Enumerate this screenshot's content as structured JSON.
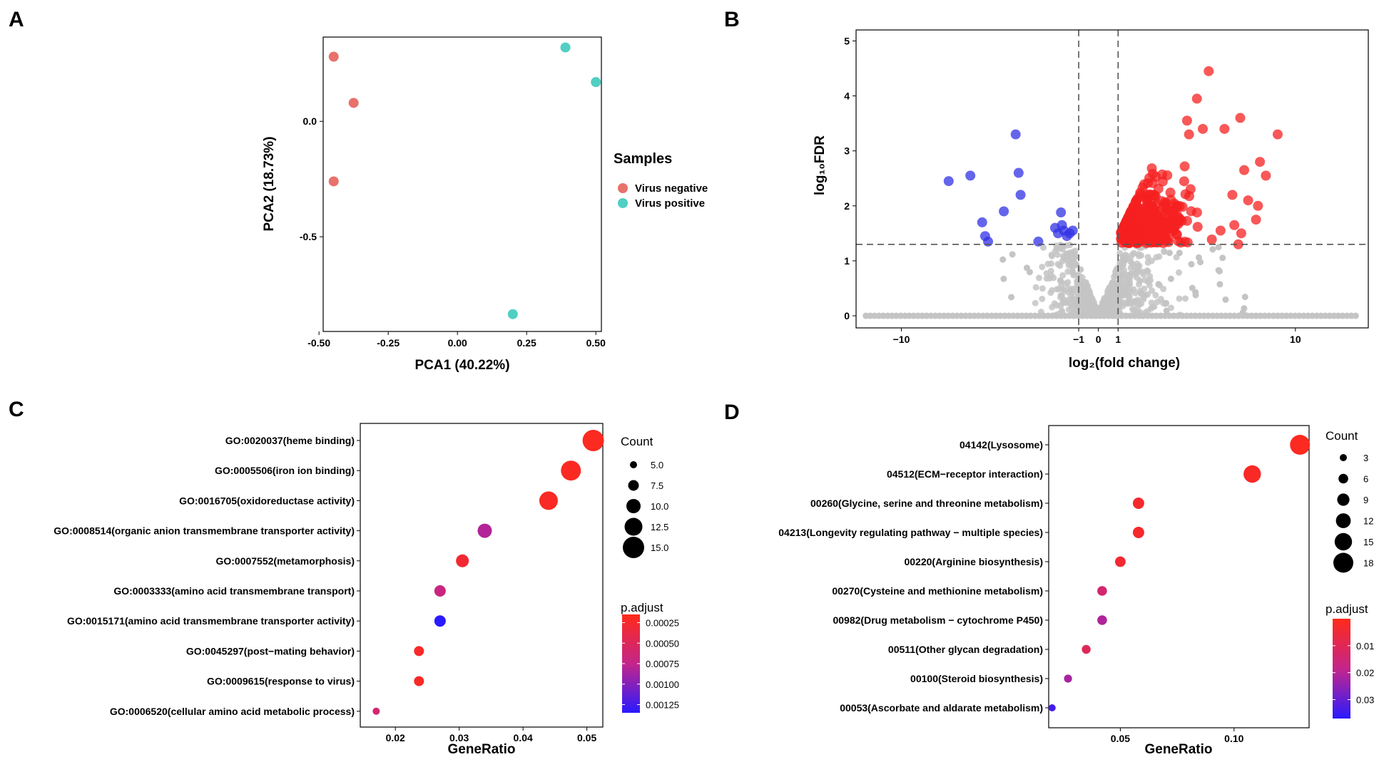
{
  "panels": {
    "a": "A",
    "b": "B",
    "c": "C",
    "d": "D"
  },
  "chart_data": [
    {
      "id": "pca",
      "type": "scatter",
      "title": "",
      "xlabel": "PCA1 (40.22%)",
      "ylabel": "PCA2 (18.73%)",
      "xlim": [
        -0.5,
        0.5
      ],
      "ylim": [
        -0.9,
        0.35
      ],
      "xticks": [
        -0.5,
        -0.25,
        0.0,
        0.25,
        0.5
      ],
      "xtick_labels": [
        "-0.50",
        "-0.25",
        "0.00",
        "0.25",
        "0.50"
      ],
      "yticks": [
        0.0,
        -0.5
      ],
      "ytick_labels": [
        "0.0",
        "-0.5"
      ],
      "legend": {
        "title": "Samples",
        "entries": [
          {
            "label": "Virus negative",
            "color": "#e8716c"
          },
          {
            "label": "Virus positive",
            "color": "#50cfc2"
          }
        ]
      },
      "series": [
        {
          "name": "Virus negative",
          "color": "#e8716c",
          "points": [
            [
              -0.447,
              0.28
            ],
            [
              -0.375,
              0.08
            ],
            [
              -0.447,
              -0.26
            ]
          ]
        },
        {
          "name": "Virus positive",
          "color": "#50cfc2",
          "points": [
            [
              0.39,
              0.32
            ],
            [
              0.5,
              0.17
            ],
            [
              0.2,
              -0.835
            ]
          ]
        }
      ]
    },
    {
      "id": "volcano",
      "type": "scatter",
      "title": "",
      "xlabel": "log₂(fold change)",
      "ylabel": "log₁₀FDR",
      "xlim": [
        -12.5,
        13.5
      ],
      "ylim": [
        -0.25,
        5.2
      ],
      "xticks": [
        -10,
        -1,
        0,
        1,
        10
      ],
      "xtick_labels": [
        "−10",
        "−1",
        "0",
        "1",
        "10"
      ],
      "yticks": [
        0,
        1,
        2,
        3,
        4,
        5
      ],
      "ytick_labels": [
        "0",
        "1",
        "2",
        "3",
        "4",
        "5"
      ],
      "thresholds": {
        "x": [
          -1,
          1
        ],
        "y": 1.3
      },
      "colors": {
        "up": "#f52020",
        "down": "#3232e6",
        "ns": "#c4c4c4"
      },
      "down_points": [
        [
          -7.6,
          2.45
        ],
        [
          -6.5,
          2.55
        ],
        [
          -5.9,
          1.7
        ],
        [
          -5.75,
          1.45
        ],
        [
          -5.6,
          1.35
        ],
        [
          -4.8,
          1.9
        ],
        [
          -4.2,
          3.3
        ],
        [
          -4.05,
          2.6
        ],
        [
          -3.95,
          2.2
        ],
        [
          -3.05,
          1.35
        ],
        [
          -2.2,
          1.6
        ],
        [
          -2.05,
          1.5
        ],
        [
          -1.9,
          1.88
        ],
        [
          -1.85,
          1.65
        ],
        [
          -1.75,
          1.55
        ],
        [
          -1.6,
          1.45
        ],
        [
          -1.45,
          1.5
        ],
        [
          -1.3,
          1.55
        ]
      ],
      "up_extreme_points": [
        [
          5.6,
          4.45
        ],
        [
          5.0,
          3.95
        ],
        [
          4.5,
          3.55
        ],
        [
          4.6,
          3.3
        ],
        [
          5.3,
          3.4
        ],
        [
          6.4,
          3.4
        ],
        [
          7.2,
          3.6
        ],
        [
          9.1,
          3.3
        ],
        [
          8.2,
          2.8
        ],
        [
          8.5,
          2.55
        ],
        [
          7.4,
          2.65
        ],
        [
          6.8,
          2.2
        ],
        [
          7.6,
          2.1
        ],
        [
          8.1,
          2.0
        ],
        [
          8.0,
          1.75
        ],
        [
          6.9,
          1.65
        ],
        [
          7.25,
          1.5
        ],
        [
          6.2,
          1.55
        ],
        [
          7.1,
          1.3
        ]
      ]
    },
    {
      "id": "go",
      "type": "scatter",
      "title": "",
      "xlabel": "GeneRatio",
      "ylabel": "",
      "xlim": [
        0.0145,
        0.0525
      ],
      "xticks": [
        0.02,
        0.03,
        0.04,
        0.05
      ],
      "xtick_labels": [
        "0.02",
        "0.03",
        "0.04",
        "0.05"
      ],
      "categories": [
        "GO:0020037(heme binding)",
        "GO:0005506(iron ion binding)",
        "GO:0016705(oxidoreductase activity)",
        "GO:0008514(organic anion transmembrane transporter activity)",
        "GO:0007552(metamorphosis)",
        "GO:0003333(amino acid transmembrane transport)",
        "GO:0015171(amino acid transmembrane transporter activity)",
        "GO:0045297(post−mating behavior)",
        "GO:0009615(response to virus)",
        "GO:0006520(cellular amino acid metabolic process)"
      ],
      "gene_ratio": [
        0.051,
        0.0475,
        0.044,
        0.034,
        0.0305,
        0.027,
        0.027,
        0.0237,
        0.0237,
        0.017
      ],
      "count": [
        15,
        14,
        13,
        10,
        9,
        8,
        8,
        7,
        7,
        5
      ],
      "p_adjust": [
        0.00018,
        0.0002,
        0.00021,
        0.00082,
        0.00028,
        0.0007,
        0.00135,
        0.00022,
        0.00022,
        0.0006
      ],
      "size_legend": {
        "title": "Count",
        "values": [
          5.0,
          7.5,
          10.0,
          12.5,
          15.0
        ],
        "labels": [
          "5.0",
          "7.5",
          "10.0",
          "12.5",
          "15.0"
        ]
      },
      "color_legend": {
        "title": "p.adjust",
        "range": [
          0.00015,
          0.00135
        ],
        "ticks": [
          0.00025,
          0.0005,
          0.00075,
          0.001,
          0.00125
        ],
        "labels": [
          "0.00025",
          "0.00050",
          "0.00075",
          "0.00100",
          "0.00125"
        ],
        "low_color": "#ff2a1a",
        "high_color": "#2a1aff"
      }
    },
    {
      "id": "kegg",
      "type": "scatter",
      "title": "",
      "xlabel": "GeneRatio",
      "ylabel": "",
      "xlim": [
        0.0185,
        0.133
      ],
      "xticks": [
        0.05,
        0.1
      ],
      "xtick_labels": [
        "0.05",
        "0.10"
      ],
      "categories": [
        "04142(Lysosome)",
        "04512(ECM−receptor interaction)",
        "00260(Glycine, serine and threonine metabolism)",
        "04213(Longevity regulating pathway − multiple species)",
        "00220(Arginine biosynthesis)",
        "00270(Cysteine and methionine metabolism)",
        "00982(Drug metabolism − cytochrome P450)",
        "00511(Other glycan degradation)",
        "00100(Steroid biosynthesis)",
        "00053(Ascorbate and aldarate metabolism)"
      ],
      "gene_ratio": [
        0.129,
        0.108,
        0.058,
        0.058,
        0.05,
        0.042,
        0.042,
        0.035,
        0.027,
        0.02
      ],
      "count": [
        18,
        15,
        8,
        8,
        7,
        6,
        6,
        5,
        4,
        3
      ],
      "p_adjust": [
        0.001,
        0.002,
        0.003,
        0.003,
        0.004,
        0.014,
        0.021,
        0.01,
        0.022,
        0.034
      ],
      "size_legend": {
        "title": "Count",
        "values": [
          3,
          6,
          9,
          12,
          15,
          18
        ],
        "labels": [
          "3",
          "6",
          "9",
          "12",
          "15",
          "18"
        ]
      },
      "color_legend": {
        "title": "p.adjust",
        "range": [
          0.0,
          0.037
        ],
        "ticks": [
          0.01,
          0.02,
          0.03
        ],
        "labels": [
          "0.01",
          "0.02",
          "0.03"
        ],
        "low_color": "#ff2a1a",
        "high_color": "#2a1aff"
      }
    }
  ]
}
